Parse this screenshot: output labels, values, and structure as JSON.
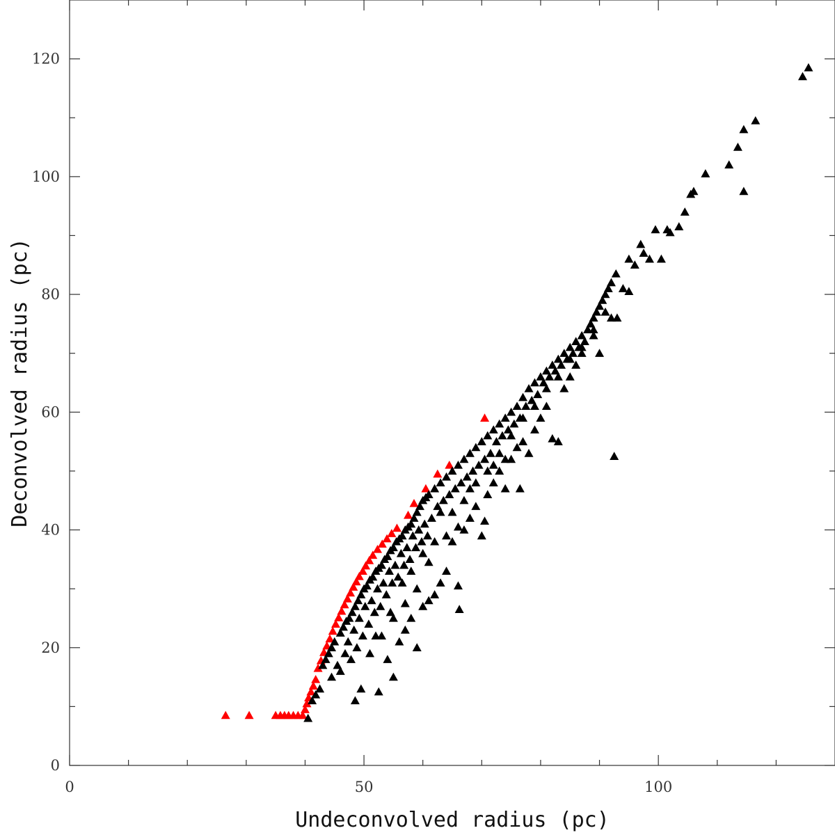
{
  "chart_data": {
    "type": "scatter",
    "xlabel": "Undeconvolved radius (pc)",
    "ylabel": "Deconvolved radius (pc)",
    "xlim": [
      0,
      130
    ],
    "ylim": [
      0,
      130
    ],
    "x_major_ticks": [
      0,
      50,
      100
    ],
    "x_minor_ticks": [
      10,
      20,
      30,
      40,
      60,
      70,
      80,
      90,
      110,
      120
    ],
    "y_major_ticks": [
      0,
      20,
      40,
      60,
      80,
      100,
      120
    ],
    "y_minor_ticks": [
      10,
      30,
      50,
      70,
      90,
      110
    ],
    "x_tick_labels": [
      "0",
      "50",
      "100"
    ],
    "y_tick_labels": [
      "0",
      "20",
      "40",
      "60",
      "80",
      "100",
      "120"
    ],
    "grid": false,
    "marker": "triangle",
    "series": [
      {
        "color": "#ff0000",
        "points": [
          [
            26.5,
            8.5
          ],
          [
            30.5,
            8.5
          ],
          [
            35,
            8.5
          ],
          [
            35.8,
            8.5
          ],
          [
            36.5,
            8.5
          ],
          [
            37.2,
            8.5
          ],
          [
            38,
            8.5
          ],
          [
            38.8,
            8.5
          ],
          [
            39.6,
            8.5
          ],
          [
            40,
            9.5
          ],
          [
            40.3,
            10.5
          ],
          [
            40.6,
            11.5
          ],
          [
            41,
            12.5
          ],
          [
            41.4,
            13.5
          ],
          [
            41.8,
            14.6
          ],
          [
            42.2,
            16.5
          ],
          [
            42.7,
            17.8
          ],
          [
            43.2,
            19.2
          ],
          [
            43.7,
            20.3
          ],
          [
            44.2,
            21.5
          ],
          [
            44.7,
            22.8
          ],
          [
            45.2,
            24
          ],
          [
            45.7,
            25.1
          ],
          [
            46.2,
            26.2
          ],
          [
            46.7,
            27.3
          ],
          [
            47.2,
            28.3
          ],
          [
            47.7,
            29.3
          ],
          [
            48.2,
            30.3
          ],
          [
            48.7,
            31.2
          ],
          [
            49.2,
            32.1
          ],
          [
            49.8,
            33
          ],
          [
            50.3,
            33.9
          ],
          [
            50.9,
            34.8
          ],
          [
            51.5,
            35.7
          ],
          [
            52.3,
            36.7
          ],
          [
            53.1,
            37.6
          ],
          [
            53.9,
            38.5
          ],
          [
            54.7,
            39.4
          ],
          [
            55.6,
            40.3
          ],
          [
            57.5,
            42.5
          ],
          [
            58.5,
            44.5
          ],
          [
            60.5,
            47
          ],
          [
            62.5,
            49.5
          ],
          [
            64.5,
            51
          ],
          [
            70.5,
            59
          ]
        ]
      },
      {
        "color": "#000000",
        "points": [
          [
            40.5,
            8
          ],
          [
            41.2,
            11
          ],
          [
            41.8,
            12
          ],
          [
            42.5,
            13
          ],
          [
            43,
            17
          ],
          [
            43.5,
            18
          ],
          [
            44,
            19
          ],
          [
            44.5,
            20
          ],
          [
            44.5,
            15
          ],
          [
            45,
            21
          ],
          [
            45.5,
            17
          ],
          [
            46,
            22.5
          ],
          [
            46,
            16
          ],
          [
            46.5,
            23.5
          ],
          [
            46.8,
            19
          ],
          [
            47,
            24.5
          ],
          [
            47.3,
            21
          ],
          [
            47.5,
            25
          ],
          [
            47.8,
            18
          ],
          [
            48,
            26
          ],
          [
            48.3,
            23
          ],
          [
            48.5,
            27
          ],
          [
            48.8,
            20
          ],
          [
            49,
            28
          ],
          [
            49.2,
            25
          ],
          [
            49.5,
            29
          ],
          [
            49.8,
            22
          ],
          [
            50,
            30
          ],
          [
            50.2,
            27
          ],
          [
            50.5,
            30.5
          ],
          [
            50.8,
            24
          ],
          [
            51,
            31.5
          ],
          [
            51.3,
            28
          ],
          [
            51.5,
            32
          ],
          [
            51.8,
            26
          ],
          [
            52,
            33
          ],
          [
            52.3,
            30
          ],
          [
            52.5,
            33.5
          ],
          [
            52.8,
            27
          ],
          [
            53,
            34
          ],
          [
            53.3,
            31
          ],
          [
            53.5,
            35
          ],
          [
            53.8,
            29
          ],
          [
            54,
            35.5
          ],
          [
            54.3,
            33
          ],
          [
            54.5,
            36.5
          ],
          [
            54.8,
            31
          ],
          [
            55,
            37
          ],
          [
            55.3,
            34
          ],
          [
            55.5,
            38
          ],
          [
            55.8,
            32
          ],
          [
            56,
            38.5
          ],
          [
            56.3,
            36
          ],
          [
            56.5,
            39
          ],
          [
            56.8,
            34
          ],
          [
            57,
            40
          ],
          [
            57.3,
            37
          ],
          [
            57.5,
            40.5
          ],
          [
            57.8,
            35
          ],
          [
            58,
            41
          ],
          [
            58.3,
            39
          ],
          [
            58.5,
            42
          ],
          [
            58.8,
            37
          ],
          [
            59,
            43
          ],
          [
            59.3,
            40
          ],
          [
            59.5,
            44
          ],
          [
            59.8,
            38
          ],
          [
            60,
            45
          ],
          [
            60.3,
            41
          ],
          [
            60.5,
            45.5
          ],
          [
            60.8,
            39
          ],
          [
            61,
            46
          ],
          [
            61.5,
            42
          ],
          [
            62,
            47
          ],
          [
            62.5,
            44
          ],
          [
            63,
            48
          ],
          [
            63.5,
            45
          ],
          [
            64,
            49
          ],
          [
            64.5,
            46
          ],
          [
            65,
            50
          ],
          [
            65.5,
            47
          ],
          [
            66,
            51
          ],
          [
            66.5,
            48
          ],
          [
            67,
            52
          ],
          [
            67.5,
            49
          ],
          [
            68,
            53
          ],
          [
            68.5,
            50
          ],
          [
            69,
            54
          ],
          [
            69.5,
            51
          ],
          [
            70,
            55
          ],
          [
            70.5,
            52
          ],
          [
            71,
            56
          ],
          [
            71.5,
            53
          ],
          [
            72,
            57
          ],
          [
            72.5,
            55
          ],
          [
            73,
            58
          ],
          [
            73.5,
            56
          ],
          [
            74,
            59
          ],
          [
            74.5,
            57
          ],
          [
            75,
            60
          ],
          [
            75.5,
            58
          ],
          [
            76,
            61
          ],
          [
            76.5,
            59
          ],
          [
            77,
            62.5
          ],
          [
            77.5,
            61
          ],
          [
            78,
            64
          ],
          [
            78.5,
            62
          ],
          [
            79,
            65
          ],
          [
            79.5,
            63
          ],
          [
            80,
            66
          ],
          [
            80.5,
            65
          ],
          [
            81,
            67
          ],
          [
            81.5,
            66
          ],
          [
            82,
            68
          ],
          [
            82.5,
            67
          ],
          [
            83,
            69
          ],
          [
            83.5,
            68
          ],
          [
            84,
            70
          ],
          [
            84.5,
            69
          ],
          [
            85,
            71
          ],
          [
            85.5,
            70
          ],
          [
            86,
            72
          ],
          [
            86.5,
            71
          ],
          [
            87,
            73
          ],
          [
            87.5,
            72
          ],
          [
            88,
            74
          ],
          [
            88.5,
            75
          ],
          [
            89,
            76
          ],
          [
            89.5,
            77
          ],
          [
            90,
            78
          ],
          [
            90.5,
            79
          ],
          [
            91,
            80
          ],
          [
            91.5,
            81
          ],
          [
            92,
            82
          ],
          [
            92.8,
            83.5
          ],
          [
            94,
            81
          ],
          [
            95,
            86
          ],
          [
            96,
            85
          ],
          [
            97,
            88.5
          ],
          [
            97.5,
            87
          ],
          [
            98.5,
            86
          ],
          [
            99.5,
            91
          ],
          [
            100.5,
            86
          ],
          [
            101.5,
            91
          ],
          [
            102,
            90.5
          ],
          [
            103.5,
            91.5
          ],
          [
            104.5,
            94
          ],
          [
            105.5,
            97
          ],
          [
            106,
            97.5
          ],
          [
            108,
            100.5
          ],
          [
            112,
            102
          ],
          [
            113.5,
            105
          ],
          [
            114.5,
            108
          ],
          [
            114.5,
            97.5
          ],
          [
            116.5,
            109.5
          ],
          [
            124.5,
            117
          ],
          [
            125.5,
            118.5
          ],
          [
            48.5,
            11
          ],
          [
            49.5,
            13
          ],
          [
            51,
            19
          ],
          [
            52.5,
            12.5
          ],
          [
            54,
            18
          ],
          [
            55,
            15
          ],
          [
            56,
            21
          ],
          [
            57,
            23
          ],
          [
            58,
            25
          ],
          [
            59,
            20
          ],
          [
            60,
            27
          ],
          [
            61,
            28
          ],
          [
            62,
            29
          ],
          [
            63,
            31
          ],
          [
            64,
            33
          ],
          [
            65,
            38
          ],
          [
            66,
            30.5
          ],
          [
            66.2,
            26.5
          ],
          [
            67,
            40
          ],
          [
            68,
            42
          ],
          [
            69,
            44
          ],
          [
            70,
            39
          ],
          [
            70.5,
            41.5
          ],
          [
            71,
            46
          ],
          [
            72,
            48
          ],
          [
            73,
            50
          ],
          [
            74,
            47
          ],
          [
            75,
            52
          ],
          [
            76,
            54
          ],
          [
            77,
            55
          ],
          [
            78,
            53
          ],
          [
            79,
            57
          ],
          [
            80,
            59
          ],
          [
            81,
            61
          ],
          [
            82,
            55.5
          ],
          [
            83,
            55
          ],
          [
            84,
            64
          ],
          [
            85,
            66
          ],
          [
            86,
            68
          ],
          [
            87,
            70
          ],
          [
            88,
            74
          ],
          [
            89,
            73
          ],
          [
            90,
            70
          ],
          [
            91,
            77
          ],
          [
            92,
            76
          ],
          [
            93,
            76
          ],
          [
            95,
            80.5
          ],
          [
            92.5,
            52.5
          ],
          [
            76.5,
            47
          ],
          [
            74,
            52
          ],
          [
            66,
            40.5
          ],
          [
            64,
            39
          ],
          [
            61,
            34.5
          ],
          [
            59,
            30
          ],
          [
            57,
            27.5
          ],
          [
            55,
            25
          ],
          [
            53,
            22
          ],
          [
            52,
            22
          ],
          [
            54.5,
            26
          ],
          [
            56.5,
            31
          ],
          [
            58,
            33
          ],
          [
            60,
            36
          ],
          [
            62,
            38
          ],
          [
            63,
            43
          ],
          [
            65,
            43
          ],
          [
            67,
            45
          ],
          [
            68,
            47
          ],
          [
            69,
            48
          ],
          [
            71,
            50
          ],
          [
            72,
            51
          ],
          [
            73,
            53
          ],
          [
            75,
            56
          ],
          [
            77,
            59
          ],
          [
            79,
            61
          ],
          [
            81,
            64
          ],
          [
            83,
            66
          ],
          [
            85,
            69
          ],
          [
            87,
            71
          ],
          [
            89,
            74
          ]
        ]
      }
    ]
  }
}
